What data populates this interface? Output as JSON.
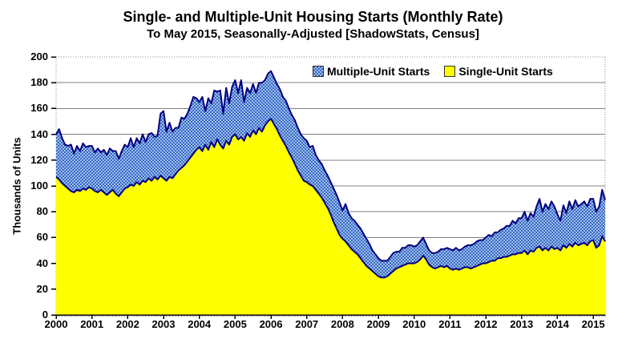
{
  "title": "Single- and Multiple-Unit Housing Starts (Monthly Rate)",
  "subtitle": "To May 2015, Seasonally-Adjusted [ShadowStats, Census]",
  "legend": [
    {
      "label": "Multiple-Unit Starts",
      "swatch": "blue-pattern"
    },
    {
      "label": "Single-Unit Starts",
      "swatch": "yellow"
    }
  ],
  "colors": {
    "background": "#FFFFFF",
    "single_fill": "#FFFF00",
    "multi_pattern_light": "#9CC2F0",
    "multi_pattern_dark": "#3A64C0",
    "series_line": "#000080",
    "gridline": "#808080",
    "axis": "#000000",
    "plot_border_dotted": "#8A8A8A"
  },
  "chart_data": {
    "type": "area",
    "stacked": true,
    "title": "Single- and Multiple-Unit Housing Starts (Monthly Rate)",
    "subtitle": "To May 2015, Seasonally-Adjusted [ShadowStats, Census]",
    "xlabel": "",
    "ylabel": "Thousands of Units",
    "ylim": [
      0,
      200
    ],
    "ytick_step": 20,
    "grid": "horizontal",
    "legend_position": "top-right-inside",
    "x_unit": "month",
    "x_range": [
      "2000-01",
      "2015-05"
    ],
    "x_tick_labels": [
      "2000",
      "2001",
      "2002",
      "2003",
      "2004",
      "2005",
      "2006",
      "2007",
      "2008",
      "2009",
      "2010",
      "2011",
      "2012",
      "2013",
      "2014",
      "2015"
    ],
    "series": [
      {
        "name": "Single-Unit Starts",
        "values": [
          107,
          105,
          102,
          100,
          98,
          96,
          95,
          97,
          96,
          98,
          97,
          99,
          98,
          96,
          95,
          97,
          95,
          93,
          95,
          97,
          94,
          92,
          95,
          98,
          99,
          101,
          100,
          103,
          101,
          104,
          103,
          106,
          104,
          107,
          105,
          108,
          106,
          104,
          107,
          106,
          109,
          112,
          114,
          116,
          119,
          122,
          125,
          128,
          130,
          127,
          132,
          128,
          134,
          130,
          136,
          132,
          129,
          135,
          132,
          138,
          140,
          136,
          138,
          135,
          141,
          138,
          143,
          140,
          145,
          142,
          147,
          150,
          152,
          148,
          144,
          139,
          135,
          131,
          126,
          122,
          117,
          112,
          108,
          104,
          103,
          101,
          100,
          97,
          94,
          91,
          87,
          83,
          78,
          72,
          67,
          62,
          59,
          57,
          54,
          51,
          49,
          47,
          44,
          41,
          38,
          36,
          34,
          32,
          30,
          29,
          29,
          30,
          32,
          34,
          36,
          37,
          38,
          39,
          40,
          40,
          40,
          41,
          43,
          46,
          43,
          39,
          37,
          36,
          37,
          38,
          37,
          38,
          36,
          35,
          36,
          35,
          36,
          37,
          37,
          36,
          37,
          38,
          39,
          40,
          40,
          41,
          42,
          42,
          44,
          44,
          45,
          45,
          46,
          47,
          47,
          48,
          48,
          50,
          47,
          50,
          49,
          52,
          53,
          50,
          52,
          50,
          53,
          51,
          52,
          50,
          54,
          52,
          55,
          53,
          56,
          54,
          55,
          56,
          54,
          57,
          58,
          52,
          54,
          61,
          57
        ]
      },
      {
        "name": "Multiple-Unit Starts",
        "values": [
          33,
          39,
          35,
          32,
          33,
          36,
          30,
          34,
          31,
          35,
          33,
          32,
          33,
          30,
          34,
          29,
          33,
          31,
          34,
          30,
          33,
          29,
          32,
          34,
          31,
          36,
          30,
          34,
          32,
          36,
          31,
          34,
          37,
          31,
          34,
          48,
          52,
          38,
          42,
          36,
          36,
          33,
          39,
          36,
          37,
          40,
          44,
          40,
          35,
          42,
          26,
          40,
          30,
          44,
          37,
          42,
          27,
          41,
          32,
          39,
          42,
          36,
          44,
          30,
          35,
          34,
          36,
          32,
          35,
          38,
          35,
          37,
          37,
          36,
          35,
          36,
          34,
          35,
          34,
          33,
          34,
          33,
          32,
          33,
          32,
          29,
          31,
          27,
          26,
          26,
          25,
          25,
          25,
          26,
          26,
          25,
          22,
          29,
          25,
          24,
          24,
          23,
          23,
          22,
          21,
          19,
          16,
          15,
          14,
          13,
          13,
          12,
          13,
          14,
          13,
          12,
          14,
          13,
          14,
          14,
          13,
          13,
          14,
          14,
          12,
          11,
          11,
          12,
          12,
          13,
          14,
          14,
          15,
          15,
          16,
          15,
          15,
          16,
          17,
          18,
          18,
          19,
          19,
          18,
          20,
          21,
          19,
          22,
          20,
          22,
          22,
          24,
          23,
          26,
          24,
          27,
          27,
          30,
          26,
          29,
          27,
          32,
          37,
          30,
          34,
          32,
          35,
          33,
          26,
          23,
          31,
          27,
          33,
          29,
          33,
          30,
          31,
          32,
          30,
          33,
          32,
          28,
          30,
          36,
          32
        ]
      }
    ]
  }
}
